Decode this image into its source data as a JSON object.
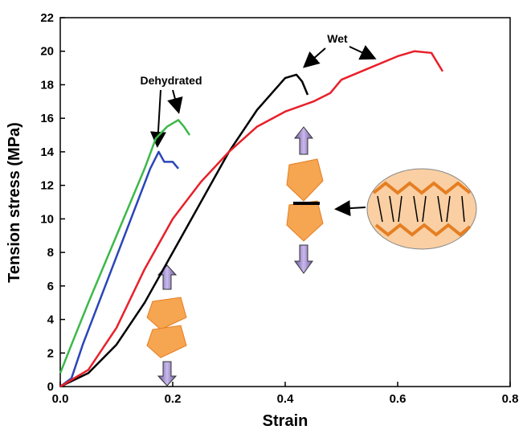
{
  "chart_data": {
    "type": "line",
    "x_label": "Strain",
    "y_label": "Tension stress (MPa)",
    "xlim": [
      0,
      0.8
    ],
    "ylim": [
      0,
      22
    ],
    "xticks": [
      {
        "value": 0,
        "label": "0.0"
      },
      0.2,
      0.4,
      0.6,
      0.8
    ],
    "yticks": [
      0,
      2,
      4,
      6,
      8,
      10,
      12,
      14,
      16,
      18,
      20,
      22
    ],
    "annotations": [
      "Dehydrated",
      "Wet"
    ],
    "series": [
      {
        "color": "#3cb84a",
        "x": [
          0,
          0.02,
          0.05,
          0.1,
          0.15,
          0.17,
          0.19,
          0.21,
          0.22,
          0.23
        ],
        "values": [
          0.8,
          2.5,
          5,
          9,
          13,
          14.8,
          15.5,
          15.9,
          15.5,
          15
        ]
      },
      {
        "color": "#2a45b8",
        "x": [
          0,
          0.02,
          0.04,
          0.08,
          0.12,
          0.16,
          0.175,
          0.185,
          0.2,
          0.21
        ],
        "values": [
          0,
          0.5,
          2.5,
          6,
          9.5,
          13,
          14,
          13.4,
          13.4,
          13
        ]
      },
      {
        "color": "#000000",
        "x": [
          0,
          0.05,
          0.1,
          0.15,
          0.2,
          0.25,
          0.3,
          0.35,
          0.4,
          0.42,
          0.43,
          0.44
        ],
        "values": [
          0,
          0.8,
          2.5,
          5,
          8,
          11,
          14,
          16.5,
          18.4,
          18.6,
          18.2,
          17.4
        ]
      },
      {
        "color": "#e8202a",
        "x": [
          0,
          0.05,
          0.1,
          0.15,
          0.2,
          0.25,
          0.3,
          0.35,
          0.4,
          0.45,
          0.48,
          0.5,
          0.55,
          0.6,
          0.63,
          0.66,
          0.68
        ],
        "values": [
          0,
          1,
          3.5,
          7,
          10,
          12.2,
          14,
          15.5,
          16.4,
          17,
          17.5,
          18.3,
          19,
          19.7,
          20,
          19.9,
          18.8
        ]
      }
    ]
  }
}
